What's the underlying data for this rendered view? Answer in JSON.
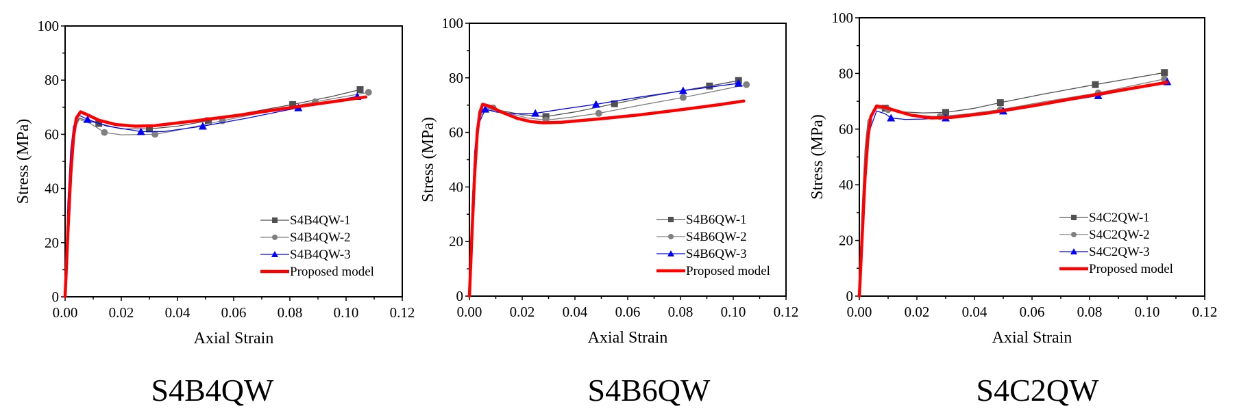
{
  "chart_data": [
    {
      "type": "line",
      "caption": "S4B4QW",
      "xlabel": "Axial Strain",
      "ylabel": "Stress (MPa)",
      "xlim": [
        0,
        0.12
      ],
      "ylim": [
        0,
        100
      ],
      "xticks": [
        "0.00",
        "0.02",
        "0.04",
        "0.06",
        "0.08",
        "0.10",
        "0.12"
      ],
      "yticks": [
        "0",
        "20",
        "40",
        "60",
        "80",
        "100"
      ],
      "legend_position": "lower-right",
      "series": [
        {
          "name": "S4B4QW-1",
          "color": "#505050",
          "marker": "square",
          "x": [
            0,
            0.001,
            0.002,
            0.003,
            0.005,
            0.008,
            0.012,
            0.02,
            0.03,
            0.04,
            0.051,
            0.065,
            0.081,
            0.095,
            0.105
          ],
          "y": [
            0,
            30,
            52,
            62,
            66,
            65,
            64,
            62,
            62,
            63,
            65,
            68,
            71,
            74,
            76.5
          ],
          "markers_x": [
            0.012,
            0.03,
            0.051,
            0.081,
            0.105
          ],
          "markers_y": [
            64,
            62,
            65,
            71,
            76.5
          ]
        },
        {
          "name": "S4B4QW-2",
          "color": "#808080",
          "marker": "circle",
          "x": [
            0,
            0.001,
            0.002,
            0.003,
            0.005,
            0.009,
            0.014,
            0.02,
            0.032,
            0.04,
            0.056,
            0.07,
            0.089,
            0.108
          ],
          "y": [
            0,
            28,
            50,
            61,
            65.5,
            64,
            60.7,
            59.8,
            60,
            61.5,
            65,
            68,
            72,
            75.5
          ],
          "markers_x": [
            0.014,
            0.032,
            0.056,
            0.089,
            0.108
          ],
          "markers_y": [
            60.7,
            60,
            65,
            72,
            75.5
          ]
        },
        {
          "name": "S4B4QW-3",
          "color": "#0000ff",
          "marker": "triangle",
          "x": [
            0,
            0.001,
            0.002,
            0.003,
            0.005,
            0.008,
            0.015,
            0.027,
            0.035,
            0.049,
            0.065,
            0.083,
            0.104
          ],
          "y": [
            0,
            35,
            54,
            63,
            67,
            65.5,
            63,
            61,
            61,
            63,
            66,
            69.8,
            74
          ],
          "markers_x": [
            0.008,
            0.027,
            0.049,
            0.083,
            0.104
          ],
          "markers_y": [
            65.5,
            61,
            63,
            69.8,
            74
          ]
        },
        {
          "name": "Proposed model",
          "color": "#ff0000",
          "marker": "none",
          "x": [
            0,
            0.001,
            0.002,
            0.003,
            0.004,
            0.0055,
            0.008,
            0.012,
            0.018,
            0.025,
            0.032,
            0.045,
            0.06,
            0.08,
            0.095,
            0.107
          ],
          "y": [
            0,
            24,
            45,
            59,
            66,
            68.3,
            67.2,
            65.2,
            63.6,
            63,
            63.2,
            64.8,
            66.8,
            69.8,
            72,
            73.8
          ]
        }
      ]
    },
    {
      "type": "line",
      "caption": "S4B6QW",
      "xlabel": "Axial Strain",
      "ylabel": "Stress (MPa)",
      "xlim": [
        0,
        0.12
      ],
      "ylim": [
        0,
        100
      ],
      "xticks": [
        "0.00",
        "0.02",
        "0.04",
        "0.06",
        "0.08",
        "0.10",
        "0.12"
      ],
      "yticks": [
        "0",
        "20",
        "40",
        "60",
        "80",
        "100"
      ],
      "legend_position": "lower-right",
      "series": [
        {
          "name": "S4B6QW-1",
          "color": "#505050",
          "marker": "square",
          "x": [
            0,
            0.001,
            0.002,
            0.003,
            0.005,
            0.007,
            0.012,
            0.02,
            0.029,
            0.04,
            0.055,
            0.07,
            0.091,
            0.102
          ],
          "y": [
            0,
            30,
            52,
            63,
            68.5,
            69,
            68,
            66.5,
            65.8,
            67.5,
            70.5,
            73.5,
            77,
            79
          ],
          "markers_x": [
            0.029,
            0.055,
            0.091,
            0.102
          ],
          "markers_y": [
            65.8,
            70.5,
            77,
            79
          ]
        },
        {
          "name": "S4B6QW-2",
          "color": "#808080",
          "marker": "circle",
          "x": [
            0,
            0.001,
            0.002,
            0.003,
            0.005,
            0.009,
            0.015,
            0.022,
            0.029,
            0.038,
            0.049,
            0.065,
            0.081,
            0.095,
            0.105
          ],
          "y": [
            0,
            28,
            50,
            62,
            68,
            69,
            67,
            65.3,
            64.5,
            65.5,
            67,
            70,
            72.8,
            75.5,
            77.5
          ],
          "markers_x": [
            0.009,
            0.029,
            0.049,
            0.081,
            0.105
          ],
          "markers_y": [
            69,
            64.5,
            67,
            72.8,
            77.5
          ]
        },
        {
          "name": "S4B6QW-3",
          "color": "#0000ff",
          "marker": "triangle",
          "x": [
            0,
            0.001,
            0.002,
            0.003,
            0.006,
            0.01,
            0.016,
            0.025,
            0.035,
            0.048,
            0.065,
            0.081,
            0.102
          ],
          "y": [
            0,
            33,
            53,
            62,
            68.5,
            67.5,
            66.8,
            67,
            68.5,
            70.3,
            73,
            75.3,
            78
          ],
          "markers_x": [
            0.006,
            0.025,
            0.048,
            0.081,
            0.102
          ],
          "markers_y": [
            68.5,
            67,
            70.3,
            75.3,
            78
          ]
        },
        {
          "name": "Proposed model",
          "color": "#ff0000",
          "marker": "none",
          "x": [
            0,
            0.001,
            0.002,
            0.003,
            0.004,
            0.005,
            0.008,
            0.012,
            0.018,
            0.023,
            0.028,
            0.035,
            0.05,
            0.065,
            0.08,
            0.095,
            0.104
          ],
          "y": [
            0,
            24,
            45,
            60,
            67.5,
            70.3,
            69.5,
            67.5,
            65.2,
            64,
            63.5,
            63.7,
            65,
            66.5,
            68.3,
            70.2,
            71.5
          ]
        }
      ]
    },
    {
      "type": "line",
      "caption": "S4C2QW",
      "xlabel": "Axial Strain",
      "ylabel": "Stress (MPa)",
      "xlim": [
        0,
        0.12
      ],
      "ylim": [
        0,
        100
      ],
      "xticks": [
        "0.00",
        "0.02",
        "0.04",
        "0.06",
        "0.08",
        "0.10",
        "0.12"
      ],
      "yticks": [
        "0",
        "20",
        "40",
        "60",
        "80",
        "100"
      ],
      "legend_position": "lower-right",
      "series": [
        {
          "name": "S4C2QW-1",
          "color": "#505050",
          "marker": "square",
          "x": [
            0,
            0.001,
            0.002,
            0.003,
            0.006,
            0.009,
            0.015,
            0.022,
            0.03,
            0.04,
            0.049,
            0.065,
            0.082,
            0.106
          ],
          "y": [
            0,
            32,
            53,
            63,
            68,
            67.5,
            66.2,
            65.8,
            66,
            67.5,
            69.5,
            72.8,
            76,
            80.3
          ],
          "markers_x": [
            0.009,
            0.03,
            0.049,
            0.082,
            0.106
          ],
          "markers_y": [
            67.5,
            66,
            69.5,
            76,
            80.3
          ]
        },
        {
          "name": "S4C2QW-2",
          "color": "#808080",
          "marker": "circle",
          "x": [
            0,
            0.001,
            0.002,
            0.003,
            0.006,
            0.01,
            0.016,
            0.022,
            0.028,
            0.038,
            0.049,
            0.065,
            0.083,
            0.106
          ],
          "y": [
            0,
            30,
            51,
            62,
            67.5,
            67,
            65.5,
            64.8,
            64.5,
            65.5,
            67,
            70,
            73,
            78
          ],
          "markers_x": [
            0.01,
            0.028,
            0.049,
            0.083,
            0.106
          ],
          "markers_y": [
            67,
            64.5,
            67,
            73,
            78
          ]
        },
        {
          "name": "S4C2QW-3",
          "color": "#0000ff",
          "marker": "triangle",
          "x": [
            0,
            0.001,
            0.002,
            0.003,
            0.006,
            0.009,
            0.011,
            0.016,
            0.022,
            0.03,
            0.04,
            0.05,
            0.065,
            0.083,
            0.107
          ],
          "y": [
            0,
            26,
            47,
            58,
            66.5,
            65.5,
            64,
            63.5,
            63.6,
            64,
            65,
            66.5,
            69,
            72,
            77
          ],
          "markers_x": [
            0.011,
            0.03,
            0.05,
            0.083,
            0.107
          ],
          "markers_y": [
            64,
            64,
            66.5,
            72,
            77
          ]
        },
        {
          "name": "Proposed model",
          "color": "#ff0000",
          "marker": "none",
          "x": [
            0,
            0.001,
            0.002,
            0.003,
            0.004,
            0.006,
            0.009,
            0.013,
            0.018,
            0.025,
            0.032,
            0.045,
            0.06,
            0.08,
            0.095,
            0.107
          ],
          "y": [
            0,
            22,
            43,
            57,
            64.5,
            68.3,
            67.8,
            66.5,
            65,
            64,
            64.2,
            65.8,
            68.3,
            72,
            74.7,
            76.8
          ]
        }
      ]
    }
  ]
}
